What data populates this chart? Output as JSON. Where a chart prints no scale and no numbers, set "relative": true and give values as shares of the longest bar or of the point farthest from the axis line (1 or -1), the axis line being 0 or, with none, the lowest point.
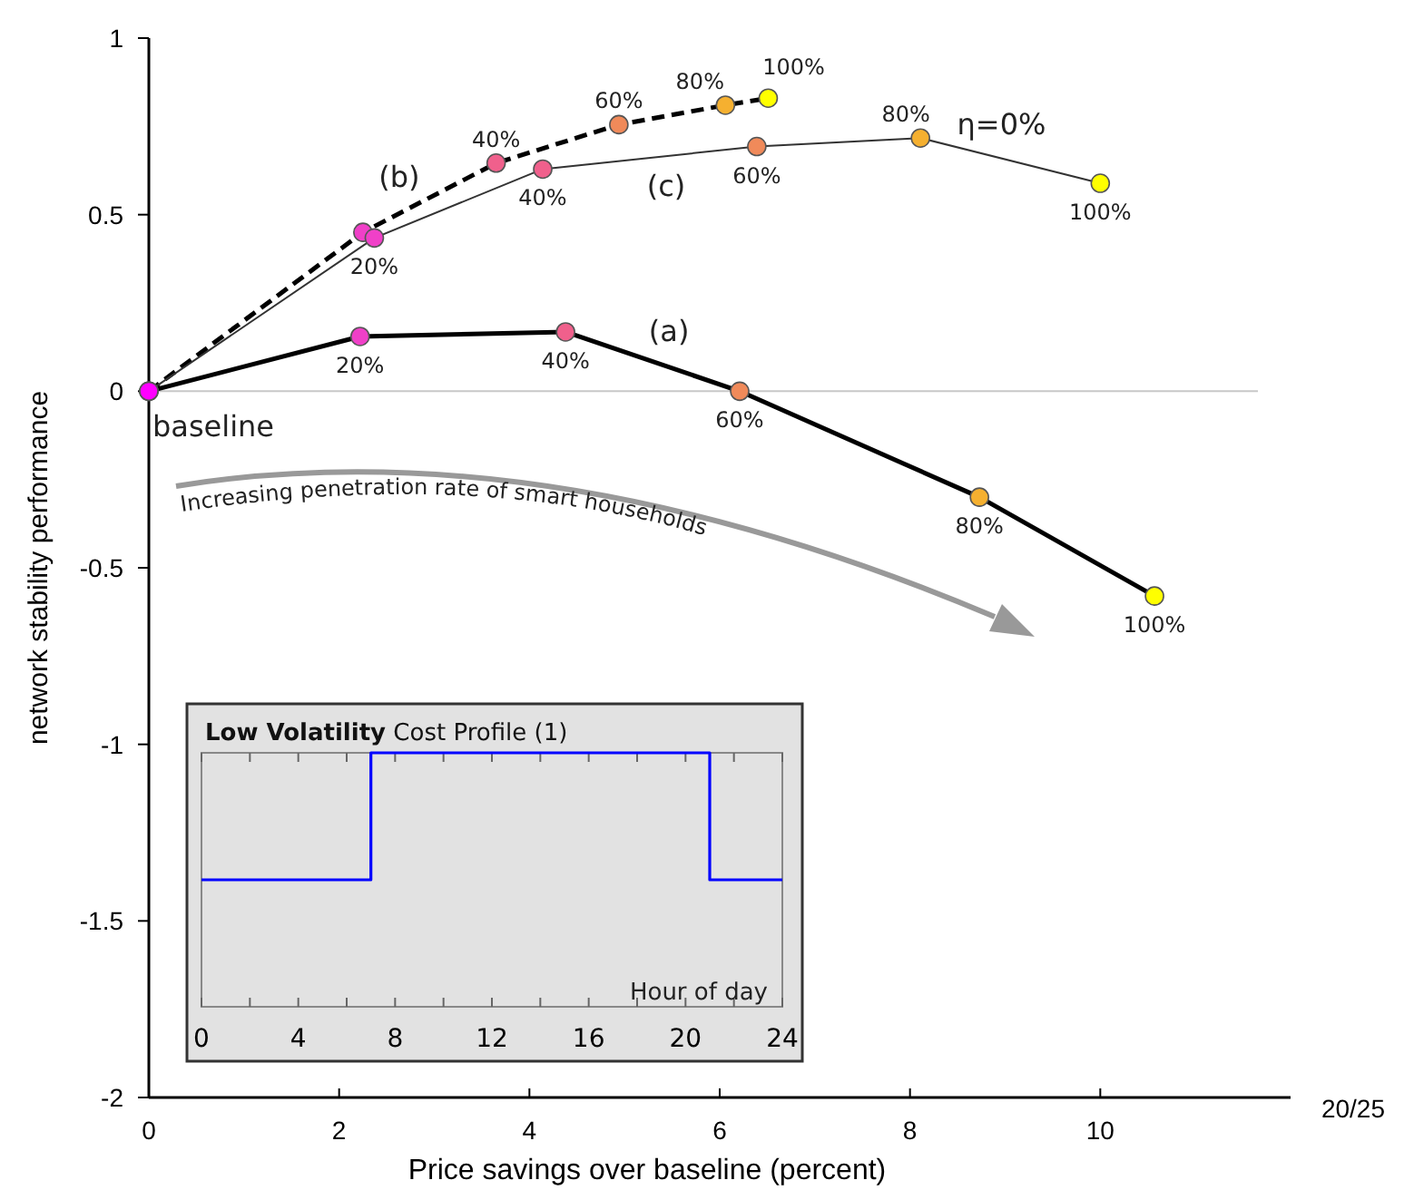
{
  "chart_data": [
    {
      "type": "line",
      "xlabel": "Price savings over baseline (percent)",
      "ylabel": "network stability performance",
      "xlim": [
        0,
        12
      ],
      "ylim": [
        -2,
        1
      ],
      "xticks": [
        0,
        2,
        4,
        6,
        8,
        10
      ],
      "yticks": [
        -2,
        -1.5,
        -1,
        -0.5,
        0,
        0.5,
        1
      ],
      "marker": "circle",
      "series": [
        {
          "name": "(a)",
          "color": "#000000",
          "line_style": "solid",
          "x": [
            0,
            2.22,
            4.38,
            6.21,
            8.73,
            10.57
          ],
          "values": [
            0,
            0.155,
            0.168,
            0,
            -0.3,
            -0.58
          ],
          "colors": [
            "#ff00ff",
            "#f040c8",
            "#f0608c",
            "#f08a5a",
            "#f5b030",
            "#ffff00"
          ]
        },
        {
          "name": "(b)",
          "color": "#000000",
          "line_style": "dashed",
          "x": [
            0,
            2.25,
            3.65,
            4.94,
            6.06,
            6.51
          ],
          "values": [
            0,
            0.45,
            0.646,
            0.755,
            0.81,
            0.83
          ],
          "colors": [
            "#ff00ff",
            "#f040c8",
            "#f0608c",
            "#f08a5a",
            "#f5b030",
            "#ffff00"
          ]
        },
        {
          "name": "(c)",
          "color": "#333333",
          "line_style": "solid",
          "x": [
            0,
            2.37,
            4.14,
            6.39,
            8.11,
            10.0
          ],
          "values": [
            0,
            0.434,
            0.629,
            0.693,
            0.717,
            0.589
          ],
          "colors": [
            "#ff00ff",
            "#f040c8",
            "#f0608c",
            "#f08a5a",
            "#f5b030",
            "#ffff00"
          ]
        }
      ],
      "ref_lines": [
        {
          "axis": "y",
          "value": 0,
          "color": "#c8c8c8"
        }
      ],
      "annotations": [
        {
          "text": "20%",
          "x": 2.22,
          "y": 0.155
        },
        {
          "text": "40%",
          "x": 4.38,
          "y": 0.168
        },
        {
          "text": "60%",
          "x": 6.21,
          "y": 0
        },
        {
          "text": "80%",
          "x": 8.73,
          "y": -0.3
        },
        {
          "text": "100%",
          "x": 10.57,
          "y": -0.58
        },
        {
          "text": "40%",
          "x": 3.65,
          "y": 0.646
        },
        {
          "text": "60%",
          "x": 4.94,
          "y": 0.755
        },
        {
          "text": "80%",
          "x": 6.06,
          "y": 0.81
        },
        {
          "text": "100%",
          "x": 6.51,
          "y": 0.83
        },
        {
          "text": "20%",
          "x": 2.37,
          "y": 0.434
        },
        {
          "text": "40%",
          "x": 4.14,
          "y": 0.629
        },
        {
          "text": "60%",
          "x": 6.39,
          "y": 0.693
        },
        {
          "text": "80%",
          "x": 8.11,
          "y": 0.717
        },
        {
          "text": "100%",
          "x": 10.0,
          "y": 0.589
        },
        {
          "text": "η=0%",
          "x": 9,
          "y": 0.657
        },
        {
          "text": "baseline",
          "x": 0,
          "y": 0
        },
        "Increasing penetration rate of smart households",
        "20/25"
      ]
    },
    {
      "type": "step",
      "title": "Low Volatility",
      "subtitle": "Cost Profile (1)",
      "xlabel": "Hour of day",
      "relative": true,
      "xlim": [
        0,
        24
      ],
      "xticks": [
        0,
        {
          "value": 2,
          "label": null
        },
        4,
        {
          "value": 6,
          "label": null
        },
        8,
        {
          "value": 10,
          "label": null
        },
        12,
        {
          "value": 14,
          "label": null
        },
        16,
        {
          "value": 18,
          "label": null
        },
        20,
        {
          "value": 22,
          "label": null
        },
        24
      ],
      "series": [
        {
          "color": "#0000ff",
          "x": [
            0,
            7,
            21,
            24
          ],
          "values": [
            0.5,
            1,
            0.5,
            0.5
          ]
        }
      ]
    }
  ]
}
